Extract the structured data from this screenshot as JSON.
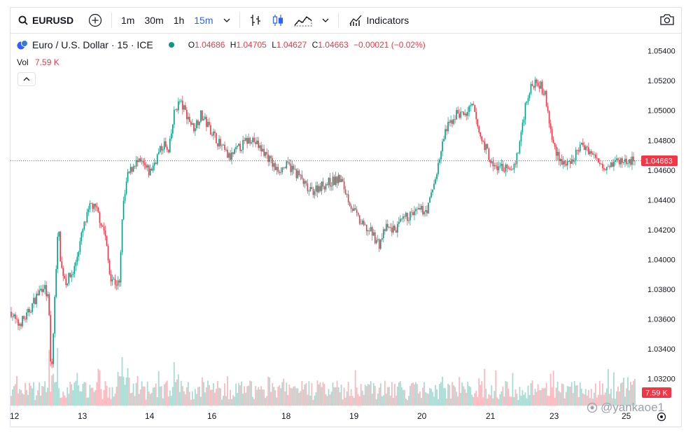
{
  "toolbar": {
    "symbol": "EURUSD",
    "intervals": [
      "1m",
      "30m",
      "1h",
      "15m"
    ],
    "active_interval": "15m",
    "indicators_label": "Indicators"
  },
  "legend": {
    "title": "Euro / U.S. Dollar · 15 · ICE",
    "open_label": "O",
    "open": "1.04686",
    "high_label": "H",
    "high": "1.04705",
    "low_label": "L",
    "low": "1.04627",
    "close_label": "C",
    "close": "1.04663",
    "change": "−0.00021 (−0.02%)",
    "vol_label": "Vol",
    "vol_value": "7.59 K"
  },
  "colors": {
    "up": "#089981",
    "down": "#f23645",
    "accent": "#2962ff"
  },
  "chart_data": {
    "type": "candlestick",
    "symbol": "EURUSD",
    "interval": "15m",
    "y_ticks": [
      "1.05400",
      "1.05200",
      "1.05000",
      "1.04800",
      "1.04600",
      "1.04400",
      "1.04200",
      "1.04000",
      "1.03800",
      "1.03600",
      "1.03400",
      "1.03200"
    ],
    "ylim": [
      1.0302,
      1.0545
    ],
    "x_ticks": [
      "12",
      "13",
      "14",
      "16",
      "18",
      "19",
      "20",
      "21",
      "23",
      "25"
    ],
    "last_price": 1.04663,
    "last_price_label": "1.04663",
    "last_volume_label": "7.59 K",
    "price_path": [
      [
        0.0,
        1.0365
      ],
      [
        0.01,
        1.0356
      ],
      [
        0.025,
        1.0362
      ],
      [
        0.04,
        1.0375
      ],
      [
        0.052,
        1.0383
      ],
      [
        0.06,
        1.0372
      ],
      [
        0.064,
        1.0318
      ],
      [
        0.067,
        1.0345
      ],
      [
        0.075,
        1.0425
      ],
      [
        0.08,
        1.0395
      ],
      [
        0.088,
        1.0385
      ],
      [
        0.1,
        1.0392
      ],
      [
        0.115,
        1.042
      ],
      [
        0.128,
        1.0437
      ],
      [
        0.138,
        1.0432
      ],
      [
        0.15,
        1.0418
      ],
      [
        0.158,
        1.039
      ],
      [
        0.166,
        1.0385
      ],
      [
        0.174,
        1.0383
      ],
      [
        0.178,
        1.043
      ],
      [
        0.186,
        1.0455
      ],
      [
        0.198,
        1.0465
      ],
      [
        0.21,
        1.0464
      ],
      [
        0.222,
        1.0458
      ],
      [
        0.235,
        1.047
      ],
      [
        0.245,
        1.0478
      ],
      [
        0.252,
        1.047
      ],
      [
        0.262,
        1.05
      ],
      [
        0.27,
        1.0506
      ],
      [
        0.282,
        1.0497
      ],
      [
        0.292,
        1.0488
      ],
      [
        0.304,
        1.0497
      ],
      [
        0.32,
        1.0487
      ],
      [
        0.336,
        1.0476
      ],
      [
        0.35,
        1.0468
      ],
      [
        0.368,
        1.0476
      ],
      [
        0.385,
        1.0482
      ],
      [
        0.398,
        1.0475
      ],
      [
        0.41,
        1.047
      ],
      [
        0.425,
        1.046
      ],
      [
        0.445,
        1.0463
      ],
      [
        0.462,
        1.0456
      ],
      [
        0.478,
        1.0445
      ],
      [
        0.494,
        1.0449
      ],
      [
        0.512,
        1.0452
      ],
      [
        0.528,
        1.0454
      ],
      [
        0.546,
        1.0435
      ],
      [
        0.562,
        1.0423
      ],
      [
        0.578,
        1.0418
      ],
      [
        0.59,
        1.041
      ],
      [
        0.6,
        1.0421
      ],
      [
        0.616,
        1.042
      ],
      [
        0.632,
        1.0428
      ],
      [
        0.652,
        1.0432
      ],
      [
        0.668,
        1.0434
      ],
      [
        0.682,
        1.0458
      ],
      [
        0.696,
        1.0486
      ],
      [
        0.714,
        1.0498
      ],
      [
        0.728,
        1.0497
      ],
      [
        0.74,
        1.0503
      ],
      [
        0.752,
        1.0482
      ],
      [
        0.762,
        1.0474
      ],
      [
        0.772,
        1.0462
      ],
      [
        0.788,
        1.0462
      ],
      [
        0.8,
        1.0458
      ],
      [
        0.812,
        1.047
      ],
      [
        0.826,
        1.0508
      ],
      [
        0.842,
        1.0522
      ],
      [
        0.856,
        1.051
      ],
      [
        0.868,
        1.0478
      ],
      [
        0.882,
        1.0466
      ],
      [
        0.896,
        1.0462
      ],
      [
        0.91,
        1.0475
      ],
      [
        0.922,
        1.0476
      ],
      [
        0.936,
        1.0468
      ],
      [
        0.952,
        1.0463
      ],
      [
        0.97,
        1.0466
      ],
      [
        0.99,
        1.0466
      ]
    ]
  },
  "watermark": "@yankaoe1"
}
